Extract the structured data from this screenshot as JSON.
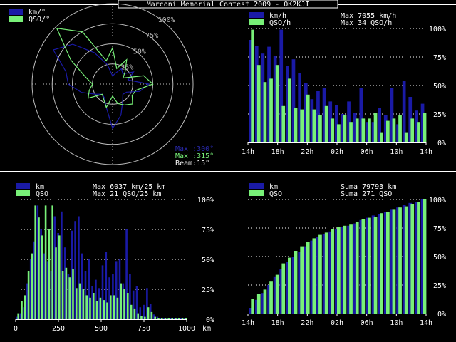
{
  "window": {
    "title": "Marconi Memorial Contest 2009 - OK2KJI"
  },
  "colors": {
    "blue": "#1a1aa6",
    "green": "#78f078",
    "white": "#ffffff",
    "gray": "#c8c8c8",
    "background": "#000000"
  },
  "chart_data": [
    {
      "id": "polar",
      "type": "polar-line",
      "legend": [
        "km/°",
        "QSO/°"
      ],
      "ring_labels": [
        "25%",
        "50%",
        "75%",
        "100%"
      ],
      "info": {
        "max_km": "Max :300°",
        "max_qso": "Max :315°",
        "beam": "Beam:15°"
      },
      "azimuths_deg": [
        0,
        15,
        30,
        45,
        60,
        75,
        90,
        105,
        120,
        135,
        150,
        165,
        180,
        195,
        210,
        225,
        240,
        255,
        270,
        285,
        300,
        315,
        330,
        345
      ],
      "series": [
        {
          "name": "km/°",
          "color": "#1a1aa6",
          "values": [
            0.1,
            0.14,
            0.22,
            0.18,
            0.3,
            0.2,
            0.45,
            0.35,
            0.2,
            0.18,
            0.25,
            0.4,
            0.55,
            0.3,
            0.2,
            0.18,
            0.25,
            0.4,
            0.55,
            0.6,
            0.85,
            0.7,
            0.45,
            0.25
          ]
        },
        {
          "name": "QSO/°",
          "color": "#78f078",
          "values": [
            0.45,
            0.2,
            0.35,
            0.22,
            0.15,
            0.4,
            0.5,
            0.3,
            0.28,
            0.35,
            0.3,
            0.25,
            0.15,
            0.3,
            0.22,
            0.18,
            0.35,
            0.3,
            0.25,
            0.35,
            0.6,
            0.98,
            0.75,
            0.3
          ]
        }
      ]
    },
    {
      "id": "hourly",
      "type": "bar",
      "legend": [
        {
          "name": "km/h",
          "text": "Max  7055 km/h"
        },
        {
          "name": "QSO/h",
          "text": "Max    34 QSO/h"
        }
      ],
      "ytick_labels": [
        "0%",
        "25%",
        "50%",
        "75%",
        "100%"
      ],
      "xtick_labels": [
        "14h",
        "18h",
        "22h",
        "02h",
        "06h",
        "10h",
        "14h"
      ],
      "series": [
        {
          "name": "km/h",
          "color": "#1a1aa6",
          "values": [
            0.9,
            0.85,
            0.78,
            0.84,
            0.76,
            0.99,
            0.67,
            0.73,
            0.61,
            0.52,
            0.38,
            0.45,
            0.48,
            0.36,
            0.33,
            0.25,
            0.36,
            0.26,
            0.48,
            0.18,
            0.18,
            0.3,
            0.24,
            0.48,
            0.16,
            0.54,
            0.4,
            0.28,
            0.34
          ]
        },
        {
          "name": "QSO/h",
          "color": "#78f078",
          "values": [
            0.99,
            0.68,
            0.53,
            0.56,
            0.68,
            0.32,
            0.56,
            0.3,
            0.29,
            0.42,
            0.29,
            0.24,
            0.32,
            0.21,
            0.16,
            0.24,
            0.18,
            0.21,
            0.21,
            0.21,
            0.26,
            0.09,
            0.19,
            0.21,
            0.24,
            0.09,
            0.21,
            0.18,
            0.26
          ]
        }
      ]
    },
    {
      "id": "distance",
      "type": "bar",
      "legend": [
        {
          "name": "km",
          "text": "Max  6037 km/25 km"
        },
        {
          "name": "QSO",
          "text": "Max    21 QSO/25 km"
        }
      ],
      "ytick_labels": [
        "0%",
        "25%",
        "50%",
        "75%",
        "100%"
      ],
      "xtick_labels": [
        "0",
        "250",
        "500",
        "750",
        "1000"
      ],
      "x_unit": "km",
      "series": [
        {
          "name": "km",
          "color": "#1a1aa6",
          "values": [
            0.02,
            0.05,
            0.1,
            0.3,
            0.5,
            0.65,
            0.95,
            0.75,
            0.55,
            0.48,
            0.4,
            0.86,
            0.72,
            0.9,
            0.6,
            0.38,
            0.74,
            0.82,
            0.86,
            0.55,
            0.4,
            0.5,
            0.28,
            0.33,
            0.26,
            0.45,
            0.56,
            0.35,
            0.38,
            0.48,
            0.5,
            0.3,
            0.75,
            0.38,
            0.24,
            0.28,
            0.1,
            0.12,
            0.26,
            0.13,
            0.04,
            0.02,
            0.01,
            0.01,
            0.01,
            0.01,
            0.01,
            0.01,
            0.01,
            0.01
          ]
        },
        {
          "name": "QSO",
          "color": "#78f078",
          "values": [
            0.05,
            0.15,
            0.2,
            0.4,
            0.55,
            0.95,
            0.85,
            0.7,
            0.95,
            0.75,
            0.95,
            0.6,
            0.7,
            0.4,
            0.43,
            0.35,
            0.42,
            0.26,
            0.3,
            0.25,
            0.2,
            0.18,
            0.22,
            0.15,
            0.18,
            0.16,
            0.14,
            0.2,
            0.2,
            0.18,
            0.3,
            0.25,
            0.22,
            0.12,
            0.09,
            0.05,
            0.03,
            0.02,
            0.1,
            0.06,
            0.02,
            0.01,
            0.01,
            0.01,
            0.01,
            0.01,
            0.01,
            0.01,
            0.01,
            0.01
          ]
        }
      ]
    },
    {
      "id": "cumulative",
      "type": "bar",
      "legend": [
        {
          "name": "km",
          "text": "Suma  79793 km"
        },
        {
          "name": "QSO",
          "text": "Suma    271 QSO"
        }
      ],
      "ytick_labels": [
        "0%",
        "25%",
        "50%",
        "75%",
        "100%"
      ],
      "xtick_labels": [
        "14h",
        "18h",
        "22h",
        "02h",
        "06h",
        "10h",
        "14h"
      ],
      "series": [
        {
          "name": "km",
          "color": "#1a1aa6",
          "values": [
            0.05,
            0.12,
            0.18,
            0.25,
            0.32,
            0.39,
            0.45,
            0.5,
            0.54,
            0.59,
            0.64,
            0.67,
            0.7,
            0.72,
            0.74,
            0.76,
            0.77,
            0.79,
            0.82,
            0.84,
            0.86,
            0.87,
            0.89,
            0.91,
            0.93,
            0.95,
            0.97,
            0.98,
            1.0
          ]
        },
        {
          "name": "QSO",
          "color": "#78f078",
          "values": [
            0.13,
            0.17,
            0.21,
            0.28,
            0.34,
            0.44,
            0.49,
            0.55,
            0.59,
            0.63,
            0.66,
            0.69,
            0.71,
            0.74,
            0.76,
            0.77,
            0.78,
            0.8,
            0.83,
            0.84,
            0.85,
            0.88,
            0.89,
            0.91,
            0.93,
            0.94,
            0.96,
            0.98,
            1.0
          ]
        }
      ]
    }
  ]
}
